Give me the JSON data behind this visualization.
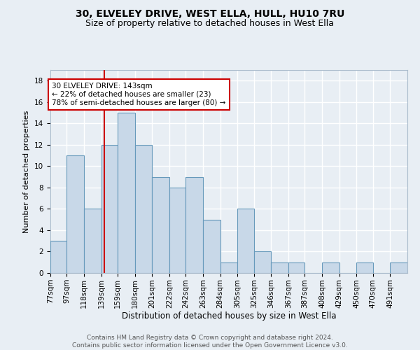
{
  "title1": "30, ELVELEY DRIVE, WEST ELLA, HULL, HU10 7RU",
  "title2": "Size of property relative to detached houses in West Ella",
  "xlabel": "Distribution of detached houses by size in West Ella",
  "ylabel": "Number of detached properties",
  "bin_labels": [
    "77sqm",
    "97sqm",
    "118sqm",
    "139sqm",
    "159sqm",
    "180sqm",
    "201sqm",
    "222sqm",
    "242sqm",
    "263sqm",
    "284sqm",
    "305sqm",
    "325sqm",
    "346sqm",
    "367sqm",
    "387sqm",
    "408sqm",
    "429sqm",
    "450sqm",
    "470sqm",
    "491sqm"
  ],
  "bin_edges": [
    77,
    97,
    118,
    139,
    159,
    180,
    201,
    222,
    242,
    263,
    284,
    305,
    325,
    346,
    367,
    387,
    408,
    429,
    450,
    470,
    491,
    512
  ],
  "counts": [
    3,
    11,
    6,
    12,
    15,
    12,
    9,
    8,
    9,
    5,
    1,
    6,
    2,
    1,
    1,
    0,
    1,
    0,
    1,
    0,
    1
  ],
  "bar_color": "#c8d8e8",
  "bar_edge_color": "#6699bb",
  "bar_linewidth": 0.8,
  "red_line_x": 143,
  "red_line_color": "#cc0000",
  "annotation_line1": "30 ELVELEY DRIVE: 143sqm",
  "annotation_line2": "← 22% of detached houses are smaller (23)",
  "annotation_line3": "78% of semi-detached houses are larger (80) →",
  "annotation_box_color": "white",
  "annotation_box_edge_color": "#cc0000",
  "ylim": [
    0,
    19
  ],
  "yticks": [
    0,
    2,
    4,
    6,
    8,
    10,
    12,
    14,
    16,
    18
  ],
  "background_color": "#e8eef4",
  "grid_color": "white",
  "footer_text": "Contains HM Land Registry data © Crown copyright and database right 2024.\nContains public sector information licensed under the Open Government Licence v3.0.",
  "title1_fontsize": 10,
  "title2_fontsize": 9,
  "xlabel_fontsize": 8.5,
  "ylabel_fontsize": 8,
  "tick_fontsize": 7.5,
  "annotation_fontsize": 7.5,
  "footer_fontsize": 6.5
}
